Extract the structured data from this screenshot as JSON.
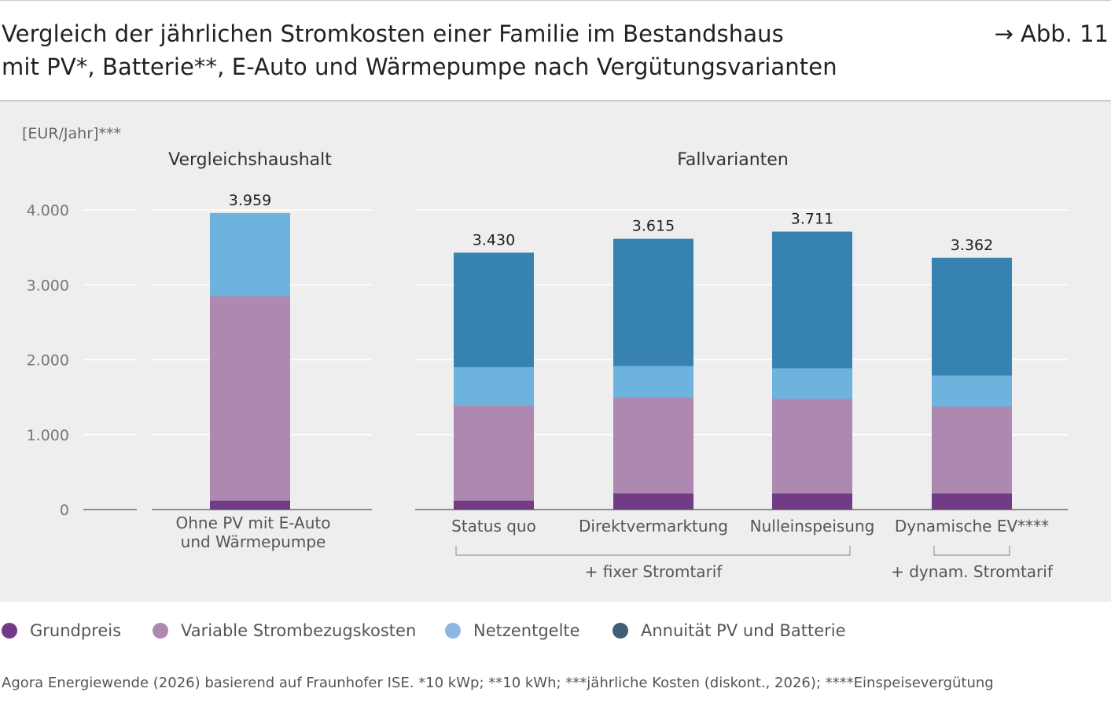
{
  "header": {
    "title_line1": "Vergleich der jährlichen Stromkosten einer Familie im Bestandshaus",
    "title_line2": "mit PV*, Batterie**, E-Auto und Wärmepumpe nach Vergütungsvarianten",
    "figure_ref": "→ Abb. 11"
  },
  "chart_data": {
    "type": "bar",
    "stacked": true,
    "unit_label": "[EUR/Jahr]***",
    "ylim": [
      0,
      4000
    ],
    "yticks": [
      {
        "value": 0,
        "label": "0"
      },
      {
        "value": 1000,
        "label": "1.000"
      },
      {
        "value": 2000,
        "label": "2.000"
      },
      {
        "value": 3000,
        "label": "3.000"
      },
      {
        "value": 4000,
        "label": "4.000"
      }
    ],
    "groups": [
      {
        "label": "Vergleichshaushalt",
        "category_count": 1
      },
      {
        "label": "Fallvarianten",
        "category_count": 4
      }
    ],
    "categories": [
      {
        "line1": "Ohne PV mit E-Auto",
        "line2": "und Wärmepumpe",
        "total_label": "3.959"
      },
      {
        "line1": "Status quo",
        "line2": "",
        "total_label": "3.430"
      },
      {
        "line1": "Direktvermarktung",
        "line2": "",
        "total_label": "3.615"
      },
      {
        "line1": "Nulleinspeisung",
        "line2": "",
        "total_label": "3.711"
      },
      {
        "line1": "Dynamische EV****",
        "line2": "",
        "total_label": "3.362"
      }
    ],
    "series": [
      {
        "name": "Grundpreis",
        "color": "#733a85",
        "values": [
          120,
          120,
          215,
          215,
          215
        ]
      },
      {
        "name": "Variable Strombezugskosten",
        "color": "#ad88b0",
        "values": [
          2730,
          1265,
          1285,
          1265,
          1160
        ]
      },
      {
        "name": "Netzentgelte",
        "color": "#6db3dd",
        "values": [
          1109,
          515,
          415,
          405,
          415
        ]
      },
      {
        "name": "Annuität PV und Batterie",
        "color": "#3683b2",
        "values": [
          0,
          1530,
          1700,
          1826,
          1572
        ]
      }
    ],
    "brackets": [
      {
        "label": "+ fixer Stromtarif",
        "from": 1,
        "to": 3
      },
      {
        "label": "+ dynam. Stromtarif",
        "from": 4,
        "to": 4
      }
    ],
    "grid": true
  },
  "legend": {
    "items": [
      {
        "label": "Grundpreis",
        "color": "#733a85"
      },
      {
        "label": "Variable Strombezugskosten",
        "color": "#ad88b0"
      },
      {
        "label": "Netzentgelte",
        "color": "#8db7e3"
      },
      {
        "label": "Annuität PV und Batterie",
        "color": "#415e77"
      }
    ]
  },
  "source": "Agora Energiewende (2026) basierend auf Fraunhofer ISE. *10 kWp; **10 kWh; ***jährliche Kosten (diskont., 2026); ****Einspeisevergütung"
}
